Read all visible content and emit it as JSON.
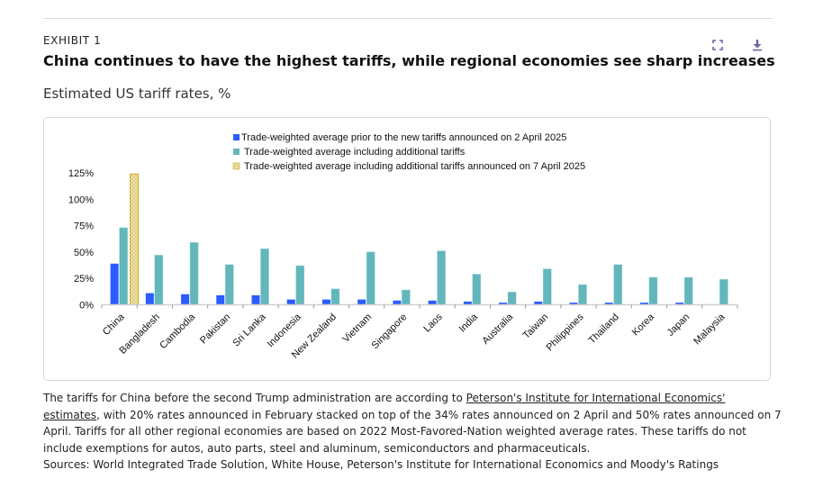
{
  "header": {
    "eyebrow": "EXHIBIT 1",
    "title": "China continues to have the highest tariffs, while regional economies see sharp increases",
    "subtitle": "Estimated US tariff rates, %",
    "icons": {
      "expand": "expand-icon",
      "download": "download-icon"
    }
  },
  "chart_data": {
    "type": "bar",
    "title": "Estimated US tariff rates, %",
    "xlabel": "",
    "ylabel": "",
    "ylim": [
      0,
      125
    ],
    "yticks": [
      "0%",
      "25%",
      "50%",
      "75%",
      "100%",
      "125%"
    ],
    "ytick_values": [
      0,
      25,
      50,
      75,
      100,
      125
    ],
    "grid": false,
    "legend_position": "top-center",
    "categories": [
      "China",
      "Bangladesh",
      "Cambodia",
      "Pakistan",
      "Sri Lanka",
      "Indonesia",
      "New Zealand",
      "Vietnam",
      "Singapore",
      "Laos",
      "India",
      "Australia",
      "Taiwan",
      "Philippines",
      "Thailand",
      "Korea",
      "Japan",
      "Malaysia"
    ],
    "series": [
      {
        "name": "Trade-weighted average prior to the new tariffs announced on 2 April 2025",
        "color": "#2b5cff",
        "values": [
          39,
          11,
          10,
          9,
          9,
          5,
          5,
          5,
          4,
          4,
          3,
          2,
          3,
          2,
          2,
          2,
          2,
          0.5
        ]
      },
      {
        "name": "Trade-weighted average including additional tariffs",
        "color": "#62b6bc",
        "values": [
          73,
          47,
          59,
          38,
          53,
          37,
          15,
          50,
          14,
          51,
          29,
          12,
          34,
          19,
          38,
          26,
          26,
          24
        ]
      },
      {
        "name": "Trade-weighted average including additional tariffs announced on 7 April 2025",
        "color": "#d9c25a",
        "pattern": "crosshatch",
        "values": [
          124,
          null,
          null,
          null,
          null,
          null,
          null,
          null,
          null,
          null,
          null,
          null,
          null,
          null,
          null,
          null,
          null,
          null
        ]
      }
    ]
  },
  "footnote": {
    "before_link": "The tariffs for China before the second Trump administration are according to ",
    "link_text": "Peterson's Institute for International Economics' estimates",
    "after_link": ", with 20% rates announced in February stacked on top of the 34% rates announced on 2 April and 50% rates announced on 7 April. Tariffs for all other regional economies are based on 2022 Most-Favored-Nation weighted average rates. These tariffs do not include exemptions for autos, auto parts, steel and aluminum, semiconductors and pharmaceuticals."
  },
  "sources": "Sources: World Integrated Trade Solution, White House, Peterson's Institute for International Economics and Moody's Ratings"
}
